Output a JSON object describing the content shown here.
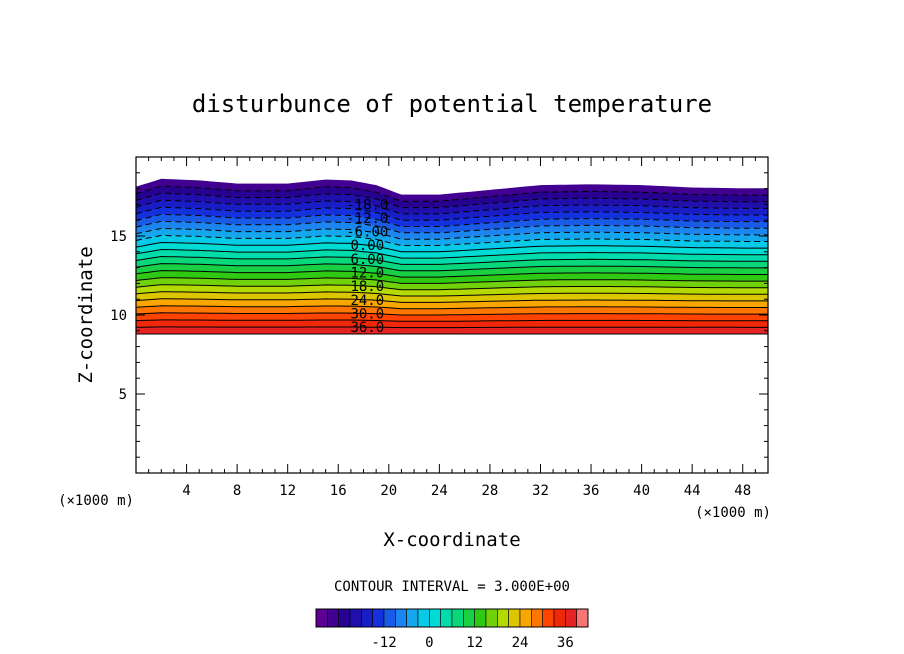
{
  "chart_data": {
    "type": "contour",
    "title": "disturbunce of potential temperature",
    "xlabel": "X-coordinate",
    "ylabel": "Z-coordinate",
    "x_unit": "(×1000 m)",
    "y_unit": "(×1000 m)",
    "xlim": [
      0,
      50
    ],
    "ylim": [
      0,
      20
    ],
    "x_ticks": [
      4,
      8,
      12,
      16,
      20,
      24,
      28,
      32,
      36,
      40,
      44,
      48
    ],
    "y_ticks": [
      5,
      10,
      15
    ],
    "contour_interval_text": "CONTOUR INTERVAL = 3.000E+00",
    "contour_levels": [
      -27,
      -24,
      -21,
      -18,
      -15,
      -12,
      -9,
      -6,
      -3,
      0,
      3,
      6,
      9,
      12,
      15,
      18,
      21,
      24,
      27,
      30,
      33,
      36,
      39
    ],
    "contour_labels": [
      "-18.0",
      "-12.0",
      "-6.00",
      "0.00",
      "6.00",
      "12.0",
      "18.0",
      "24.0",
      "30.0",
      "36.0"
    ],
    "contour_label_values": [
      -18,
      -12,
      -6,
      0,
      6,
      12,
      18,
      24,
      30,
      36
    ],
    "field_bottom_z": 8.8,
    "top_boundary": {
      "x": [
        0,
        2,
        5,
        8,
        12,
        15,
        17,
        19,
        21,
        24,
        28,
        32,
        36,
        40,
        44,
        48,
        50
      ],
      "z": [
        18.1,
        18.6,
        18.5,
        18.3,
        18.3,
        18.55,
        18.5,
        18.2,
        17.6,
        17.6,
        17.9,
        18.2,
        18.25,
        18.2,
        18.05,
        18.0,
        18.0
      ]
    },
    "negative_contours_dashed": true,
    "colorbar": {
      "ticks": [
        "-12",
        "0",
        "12",
        "24",
        "36"
      ],
      "tick_values": [
        -12,
        0,
        12,
        24,
        36
      ],
      "min": -30,
      "max": 42
    }
  }
}
